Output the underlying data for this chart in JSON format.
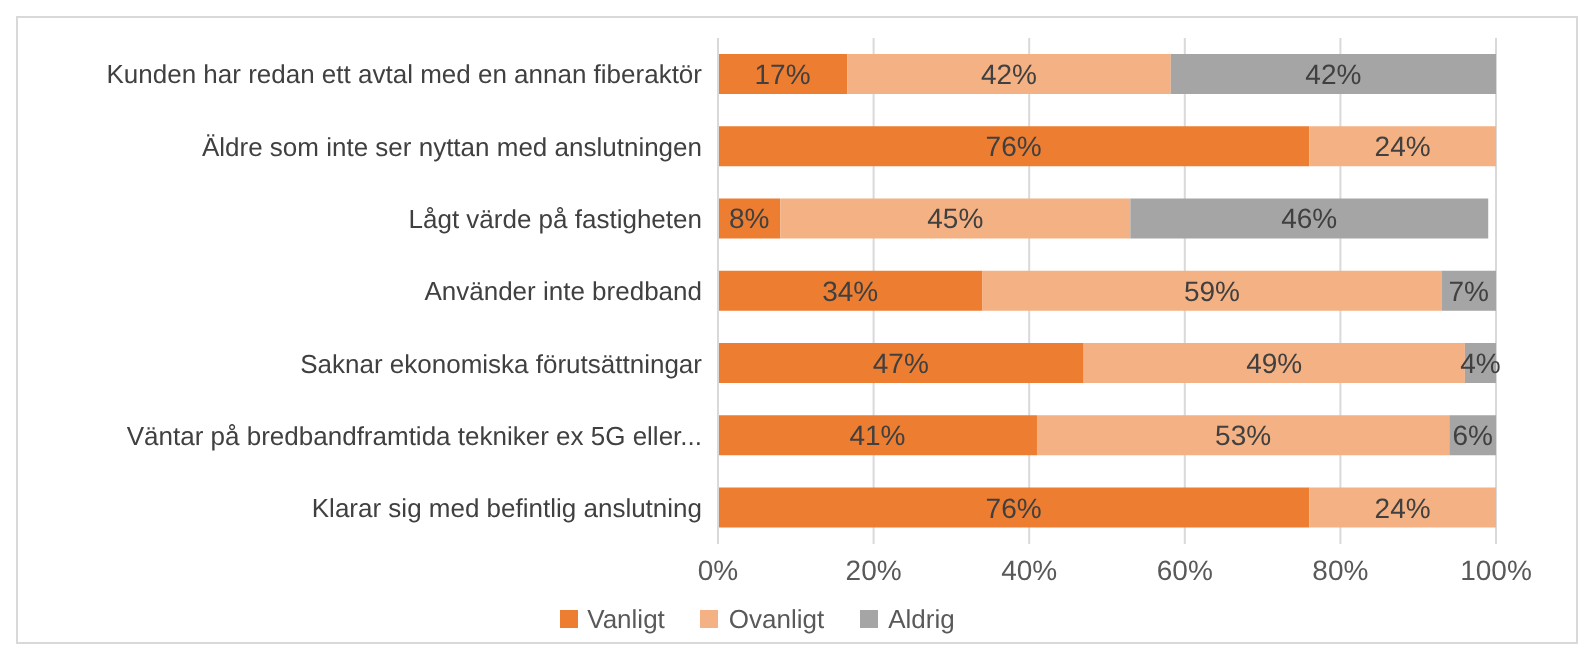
{
  "chart_data": {
    "type": "bar",
    "orientation": "horizontal",
    "stacked": true,
    "categories": [
      "Kunden har redan ett avtal med en annan fiberaktör",
      "Äldre som inte ser nyttan med anslutningen",
      "Lågt värde på fastigheten",
      "Använder inte bredband",
      "Saknar ekonomiska förutsättningar",
      "Väntar på bredbandframtida tekniker ex 5G eller...",
      "Klarar sig med befintlig anslutning"
    ],
    "series": [
      {
        "name": "Vanligt",
        "color": "#ed7d31",
        "values": [
          16.6,
          76,
          8,
          34,
          47,
          41,
          76
        ],
        "value_labels": [
          "17%",
          "76%",
          "8%",
          "34%",
          "47%",
          "41%",
          "76%"
        ]
      },
      {
        "name": "Ovanligt",
        "color": "#f4b183",
        "values": [
          41.6,
          24,
          45,
          59,
          49,
          53,
          24
        ],
        "value_labels": [
          "42%",
          "24%",
          "45%",
          "59%",
          "49%",
          "53%",
          "24%"
        ]
      },
      {
        "name": "Aldrig",
        "color": "#a5a5a5",
        "values": [
          41.8,
          null,
          46,
          7,
          4,
          6,
          null
        ],
        "value_labels": [
          "42%",
          null,
          "46%",
          "7%",
          "4%",
          "6%",
          null
        ]
      }
    ],
    "xlim": [
      0,
      100
    ],
    "xticks": [
      {
        "value": 0,
        "label": "0%"
      },
      {
        "value": 20,
        "label": "20%"
      },
      {
        "value": 40,
        "label": "40%"
      },
      {
        "value": 60,
        "label": "60%"
      },
      {
        "value": 80,
        "label": "80%"
      },
      {
        "value": 100,
        "label": "100%"
      }
    ],
    "grid": "x",
    "legend": "bottom"
  }
}
